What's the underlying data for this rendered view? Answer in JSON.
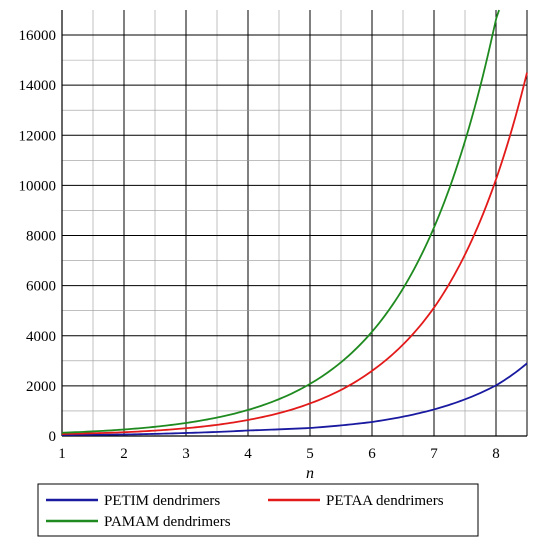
{
  "chart_data": {
    "type": "line",
    "xlabel": "n",
    "ylabel": "",
    "xlim": [
      1,
      8.5
    ],
    "ylim": [
      0,
      17000
    ],
    "x_ticks": [
      1,
      2,
      3,
      4,
      5,
      6,
      7,
      8
    ],
    "y_ticks": [
      0,
      2000,
      4000,
      6000,
      8000,
      10000,
      12000,
      14000,
      16000
    ],
    "grid": true,
    "legend_placement": "bottom",
    "series": [
      {
        "name": "PETIM dendrimers",
        "color": "#1a1aa0",
        "x": [
          1,
          2,
          3,
          4,
          5,
          6,
          7,
          8,
          8.5
        ],
        "y": [
          40,
          60,
          120,
          220,
          320,
          560,
          1060,
          2020,
          2900
        ]
      },
      {
        "name": "PETAA dendrimers",
        "color": "#e31a1a",
        "x": [
          1,
          2,
          3,
          4,
          5,
          6,
          7,
          8,
          8.5
        ],
        "y": [
          80,
          150,
          310,
          640,
          1300,
          2600,
          5120,
          10240,
          14500
        ]
      },
      {
        "name": "PAMAM dendrimers",
        "color": "#1f8a1f",
        "x": [
          1,
          2,
          3,
          4,
          5,
          6,
          7,
          8,
          8.05
        ],
        "y": [
          130,
          260,
          520,
          1040,
          2080,
          4160,
          8320,
          16640,
          17000
        ]
      }
    ]
  }
}
